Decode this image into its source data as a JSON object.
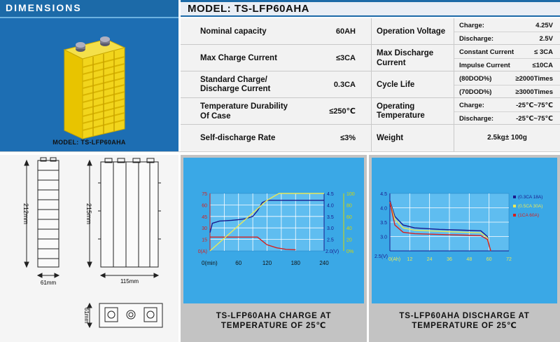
{
  "header": {
    "left_title": "DIMENSIONS",
    "model_title": "MODEL: TS-LFP60AHA"
  },
  "photo": {
    "caption": "MODEL: TS-LFP60AHA"
  },
  "specs": {
    "nominal_capacity": {
      "label": "Nominal capacity",
      "value": "60AH"
    },
    "max_charge_current": {
      "label": "Max Charge Current",
      "value": "≤3CA"
    },
    "standard_charge": {
      "label_line1": "Standard Charge/",
      "label_line2": "Discharge Current",
      "value": "0.3CA"
    },
    "temperature_durability": {
      "label_line1": "Temperature Durability",
      "label_line2": "Of Case",
      "value": "≤250℃"
    },
    "self_discharge": {
      "label": "Self-discharge Rate",
      "value": "≤3%"
    },
    "operation_voltage": {
      "label": "Operation Voltage",
      "charge_label": "Charge:",
      "charge_value": "4.25V",
      "discharge_label": "Discharge:",
      "discharge_value": "2.5V"
    },
    "max_discharge": {
      "label_line1": "Max Discharge",
      "label_line2": "Current",
      "constant_label": "Constant Current",
      "constant_value": "≤ 3CA",
      "impulse_label": "Impulse Current",
      "impulse_value": "≤10CA"
    },
    "cycle_life": {
      "label": "Cycle Life",
      "dod80_label": "(80DOD%)",
      "dod80_value": "≥2000Times",
      "dod70_label": "(70DOD%)",
      "dod70_value": "≥3000Times"
    },
    "operating_temperature": {
      "label_line1": "Operating",
      "label_line2": "Temperature",
      "charge_label": "Charge:",
      "charge_value": "-25℃~75℃",
      "discharge_label": "Discharge:",
      "discharge_value": "-25℃~75℃"
    },
    "weight": {
      "label": "Weight",
      "value": "2.5kg± 100g"
    }
  },
  "dimensions": {
    "height_side": "212mm",
    "height_front": "215mm",
    "width_side": "61mm",
    "width_front": "115mm",
    "depth_top": "61mm"
  },
  "charge_chart": {
    "caption_line1": "TS-LFP60AHA CHARGE AT",
    "caption_line2": "TEMPERATURE OF 25℃",
    "colors": {
      "plot_bg": "#3aa8e6",
      "voltage": "#1a1a8c",
      "current": "#d42020",
      "capacity": "#e8e858",
      "current_axis": "#d42020",
      "voltage_axis": "#1a1a8c",
      "capacity_axis": "#d8d800"
    }
  },
  "discharge_chart": {
    "caption_line1": "TS-LFP60AHA DISCHARGE AT",
    "caption_line2": "TEMPERATURE OF 25℃"
  },
  "chart_data": [
    {
      "type": "line",
      "x_unit_label": "0(min)",
      "x_ticks": [
        "60",
        "120",
        "180",
        "240"
      ],
      "xlim": [
        0,
        240
      ],
      "left_axis": {
        "unit": "0(A)",
        "ticks": [
          "75",
          "60",
          "45",
          "30",
          "15"
        ],
        "range": [
          0,
          75
        ]
      },
      "right_axis_voltage": {
        "unit": "2.0(V)",
        "ticks": [
          "4.5",
          "4.0",
          "3.5",
          "3.0",
          "2.5"
        ],
        "range": [
          2.0,
          4.5
        ]
      },
      "right_axis_capacity": {
        "unit": "0%",
        "ticks": [
          "100",
          "80",
          "60",
          "40",
          "20"
        ],
        "range": [
          0,
          100
        ]
      },
      "series": [
        {
          "axis": "voltage",
          "x": [
            0,
            5,
            20,
            45,
            60,
            75,
            90,
            100,
            110,
            120,
            240
          ],
          "y": [
            2.8,
            3.2,
            3.3,
            3.33,
            3.36,
            3.4,
            3.5,
            3.75,
            4.1,
            4.2,
            4.2
          ]
        },
        {
          "axis": "current",
          "x": [
            0,
            5,
            100,
            110,
            120,
            140,
            160,
            180
          ],
          "y": [
            18,
            18,
            18,
            13,
            8,
            4,
            2,
            1.5
          ]
        },
        {
          "axis": "capacity",
          "x": [
            0,
            120,
            145,
            240
          ],
          "y": [
            0,
            88,
            100,
            100
          ]
        }
      ],
      "grid": true
    },
    {
      "type": "line",
      "x_unit_label": "0(Ah)",
      "x_ticks": [
        "12",
        "24",
        "36",
        "48",
        "60",
        "72"
      ],
      "xlim": [
        0,
        72
      ],
      "y_unit_label": "2.5(V)",
      "y_ticks": [
        "4.5",
        "4.0",
        "3.5",
        "3.0"
      ],
      "ylim": [
        2.5,
        4.5
      ],
      "legend": {
        "placement": "top-right",
        "entries": [
          "(0.3CA 18A)",
          "(0.5CA 30A)",
          "(1CA    60A)"
        ]
      },
      "series": [
        {
          "color": "#1a1a8c",
          "x": [
            0,
            3,
            8,
            15,
            30,
            45,
            55,
            59,
            60,
            61
          ],
          "y": [
            4.25,
            3.7,
            3.4,
            3.3,
            3.25,
            3.22,
            3.2,
            3.0,
            2.7,
            2.5
          ]
        },
        {
          "color": "#e8e858",
          "x": [
            0,
            3,
            8,
            15,
            30,
            45,
            55,
            59,
            60,
            61
          ],
          "y": [
            4.2,
            3.6,
            3.3,
            3.22,
            3.18,
            3.15,
            3.13,
            2.95,
            2.7,
            2.5
          ]
        },
        {
          "color": "#d42020",
          "x": [
            0,
            3,
            8,
            15,
            30,
            45,
            55,
            59,
            60,
            61
          ],
          "y": [
            4.2,
            3.4,
            3.15,
            3.1,
            3.07,
            3.05,
            3.03,
            2.9,
            2.7,
            2.5
          ]
        }
      ],
      "grid": true
    }
  ]
}
